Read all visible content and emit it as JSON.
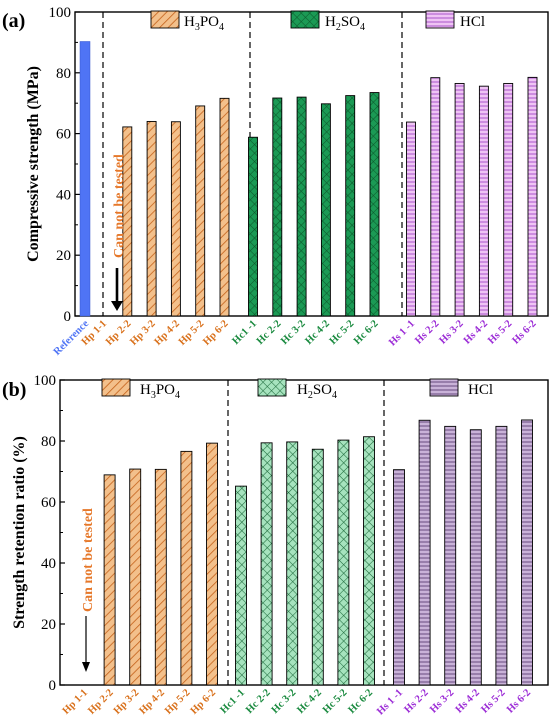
{
  "chart_data": [
    {
      "type": "bar",
      "panel": "(a)",
      "ylabel": "Compressive strength (MPa)",
      "ylim": [
        0,
        100
      ],
      "yticks": [
        0,
        20,
        40,
        60,
        80,
        100
      ],
      "reference": {
        "category": "Reference",
        "value": 90.3,
        "color": "#4F74F5"
      },
      "legend": [
        {
          "label_main": "H",
          "sub1": "3",
          "mid": "PO",
          "sub2": "4",
          "pattern": "hatch",
          "color": "#F3C08B",
          "edge": "#C4621B"
        },
        {
          "label_main": "H",
          "sub1": "2",
          "mid": "SO",
          "sub2": "4",
          "pattern": "cross",
          "color": "#1B9A55",
          "edge": "#0C5A2C"
        },
        {
          "label_main": "HCl",
          "sub1": "",
          "mid": "",
          "sub2": "",
          "pattern": "vlines",
          "color": "#EFC4F4",
          "edge": "#A248C6"
        }
      ],
      "groups": [
        {
          "name": "H3PO4",
          "label_color": "#D9711C",
          "categories": [
            "Hp 1-1",
            "Hp 2-2",
            "Hp 3-2",
            "Hp 4-2",
            "Hp 5-2",
            "Hp 6-2"
          ],
          "values": [
            null,
            62.2,
            64.0,
            63.9,
            69.1,
            71.6
          ]
        },
        {
          "name": "H2SO4",
          "label_color": "#1A8A3F",
          "categories": [
            "Hc1 -1",
            "Hc 2-2",
            "Hc 3-2",
            "Hc 4-2",
            "Hc 5-2",
            "Hc 6-2"
          ],
          "values": [
            58.8,
            71.7,
            72.0,
            69.8,
            72.5,
            73.5
          ]
        },
        {
          "name": "HCl",
          "label_color": "#9B2BD6",
          "categories": [
            "Hs 1 -1",
            "Hs 2-2",
            "Hs 3-2",
            "Hs 4-2",
            "Hs 5-2",
            "Hs 6-2"
          ],
          "values": [
            63.8,
            78.4,
            76.5,
            75.6,
            76.5,
            78.5
          ]
        }
      ],
      "annotation": "Can not be tested"
    },
    {
      "type": "bar",
      "panel": "(b)",
      "ylabel": "Strength retention ratio (%)",
      "ylim": [
        0,
        100
      ],
      "yticks": [
        0,
        20,
        40,
        60,
        80,
        100
      ],
      "legend": [
        {
          "label_main": "H",
          "sub1": "3",
          "mid": "PO",
          "sub2": "4",
          "pattern": "hatch",
          "color": "#F3C08B",
          "edge": "#C4621B"
        },
        {
          "label_main": "H",
          "sub1": "2",
          "mid": "SO",
          "sub2": "4",
          "pattern": "cross",
          "color": "#A6E3BE",
          "edge": "#1E6B3C"
        },
        {
          "label_main": "HCl",
          "sub1": "",
          "mid": "",
          "sub2": "",
          "pattern": "hlines",
          "color": "#C9B2D8",
          "edge": "#5B3E74"
        }
      ],
      "groups": [
        {
          "name": "H3PO4",
          "label_color": "#D9711C",
          "categories": [
            "Hp 1-1",
            "Hp 2-2",
            "Hp 3-2",
            "Hp 4-2",
            "Hp 5-2",
            "Hp 6-2"
          ],
          "values": [
            null,
            68.9,
            70.8,
            70.7,
            76.6,
            79.3
          ]
        },
        {
          "name": "H2SO4",
          "label_color": "#1A8A3F",
          "categories": [
            "Hc1 -1",
            "Hc 2-2",
            "Hc 3-2",
            "Hc 4-2",
            "Hc 5-2",
            "Hc 6-2"
          ],
          "values": [
            65.2,
            79.4,
            79.7,
            77.3,
            80.3,
            81.4
          ]
        },
        {
          "name": "HCl",
          "label_color": "#9B2BD6",
          "categories": [
            "Hs 1 -1",
            "Hs 2-2",
            "Hs 3-2",
            "Hs 4-2",
            "Hs 5-2",
            "Hs 6-2"
          ],
          "values": [
            70.6,
            86.8,
            84.8,
            83.7,
            84.8,
            86.9
          ]
        }
      ],
      "annotation": "Can not be tested"
    }
  ]
}
